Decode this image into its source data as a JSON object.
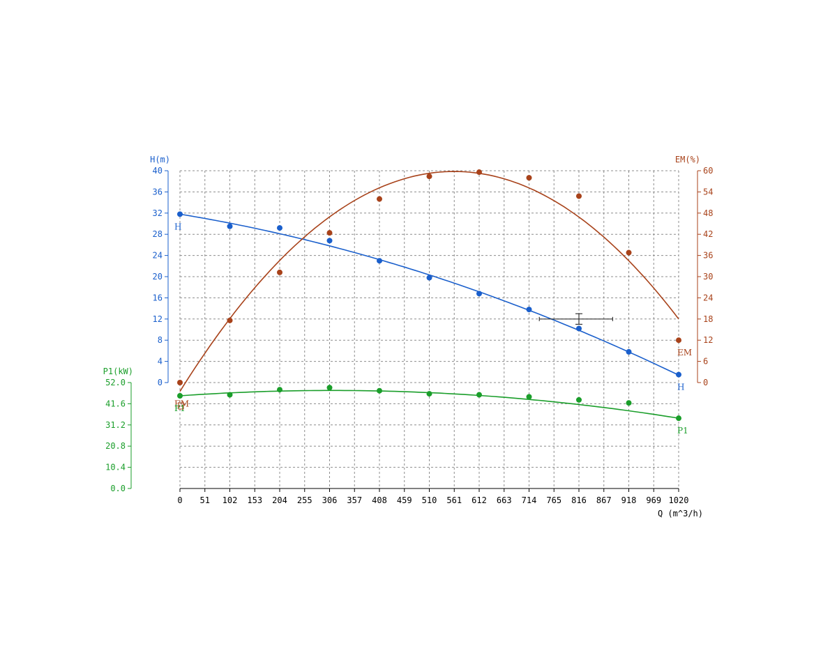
{
  "chart_data": {
    "type": "line",
    "x_axis": {
      "label": "Q (m^3/h)",
      "range": [
        0,
        1020
      ],
      "ticks": [
        "0",
        "51",
        "102",
        "153",
        "204",
        "255",
        "306",
        "357",
        "408",
        "459",
        "510",
        "561",
        "612",
        "663",
        "714",
        "765",
        "816",
        "867",
        "918",
        "969",
        "1020"
      ],
      "color": "#000000"
    },
    "y_axes": [
      {
        "id": "H",
        "label": "H(m)",
        "side": "left",
        "range": [
          0,
          40
        ],
        "color": "#1a5fcc",
        "ticks": [
          "0",
          "4",
          "8",
          "12",
          "16",
          "20",
          "24",
          "28",
          "32",
          "36",
          "40"
        ]
      },
      {
        "id": "EM",
        "label": "EM(%)",
        "side": "right",
        "range": [
          0,
          60
        ],
        "color": "#a8421a",
        "ticks": [
          "0",
          "6",
          "12",
          "18",
          "24",
          "30",
          "36",
          "42",
          "48",
          "54",
          "60"
        ]
      },
      {
        "id": "P1",
        "label": "P1(kW)",
        "side": "left",
        "range": [
          0,
          52
        ],
        "color": "#1a9e2a",
        "ticks": [
          "0.0",
          "10.4",
          "20.8",
          "31.2",
          "41.6",
          "52.0"
        ]
      }
    ],
    "grid": true,
    "series": [
      {
        "name": "H",
        "axis": "H",
        "color": "#1a5fcc",
        "label_start": "H",
        "label_end": "H",
        "points": [
          [
            0,
            31.8
          ],
          [
            102,
            29.5
          ],
          [
            204,
            29.2
          ],
          [
            306,
            26.8
          ],
          [
            408,
            23.0
          ],
          [
            510,
            19.8
          ],
          [
            612,
            16.8
          ],
          [
            714,
            13.8
          ],
          [
            816,
            10.2
          ],
          [
            918,
            5.8
          ],
          [
            1020,
            1.5
          ]
        ],
        "curve_start": 31.8,
        "curve_end": 1.4
      },
      {
        "name": "EM",
        "axis": "EM",
        "color": "#a8421a",
        "label_start": "EM",
        "label_end": "EM",
        "points": [
          [
            0,
            0
          ],
          [
            102,
            17.6
          ],
          [
            204,
            31.2
          ],
          [
            306,
            42.4
          ],
          [
            408,
            52.0
          ],
          [
            510,
            58.4
          ],
          [
            612,
            59.6
          ],
          [
            714,
            58.0
          ],
          [
            816,
            52.8
          ],
          [
            918,
            36.8
          ],
          [
            1020,
            12.0
          ]
        ],
        "curve_start": -2.5,
        "curve_end": 18.0
      },
      {
        "name": "P1",
        "axis": "P1",
        "color": "#1a9e2a",
        "label_start": "P1",
        "label_end": "P1",
        "points": [
          [
            0,
            45.5
          ],
          [
            102,
            46.0
          ],
          [
            204,
            48.5
          ],
          [
            306,
            49.5
          ],
          [
            408,
            48.0
          ],
          [
            510,
            46.5
          ],
          [
            612,
            46.0
          ],
          [
            714,
            45.0
          ],
          [
            816,
            43.5
          ],
          [
            918,
            42.0
          ],
          [
            1020,
            34.5
          ]
        ],
        "curve_start": 45.5,
        "curve_end": 34.5
      }
    ],
    "annotation": {
      "type": "error-bar",
      "x": 816,
      "y_axis": "H",
      "y": 12,
      "x_range": [
        735,
        885
      ],
      "y_range": [
        11.0,
        13.0
      ],
      "color": "#333333"
    }
  }
}
